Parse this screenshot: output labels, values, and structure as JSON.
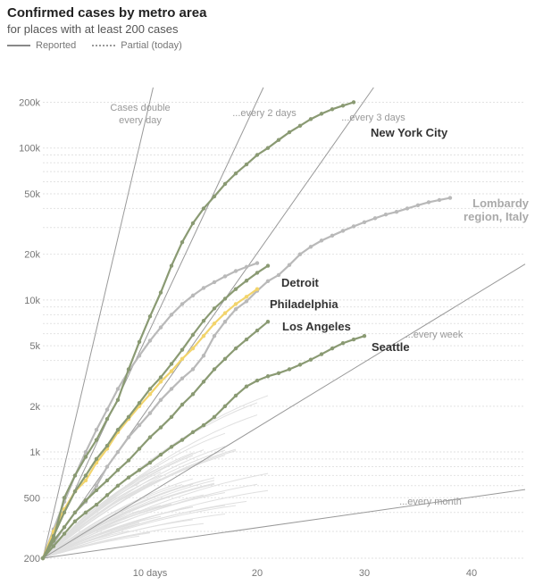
{
  "header": {
    "title": "Confirmed cases by metro area",
    "subtitle": "for places with at least 200 cases",
    "legend_reported": "Reported",
    "legend_partial": "Partial (today)"
  },
  "colors": {
    "green": "#8a9a73",
    "gray": "#b9b9b9",
    "yellow": "#f2d46b",
    "background_lines": "#e0e0e0",
    "reference": "#999999"
  },
  "chart_data": {
    "type": "line",
    "title": "Confirmed cases by metro area",
    "subtitle": "for places with at least 200 cases",
    "xlabel": "",
    "ylabel": "",
    "xlim": [
      0,
      45
    ],
    "ylim": [
      200,
      250000
    ],
    "y_scale": "log",
    "x_ticks": [
      {
        "value": 10,
        "label": "10 days"
      },
      {
        "value": 20,
        "label": "20"
      },
      {
        "value": 30,
        "label": "30"
      },
      {
        "value": 40,
        "label": "40"
      }
    ],
    "y_ticks": [
      {
        "value": 200,
        "label": "200"
      },
      {
        "value": 500,
        "label": "500"
      },
      {
        "value": 1000,
        "label": "1k"
      },
      {
        "value": 2000,
        "label": "2k"
      },
      {
        "value": 5000,
        "label": "5k"
      },
      {
        "value": 10000,
        "label": "10k"
      },
      {
        "value": 20000,
        "label": "20k"
      },
      {
        "value": 50000,
        "label": "50k"
      },
      {
        "value": 100000,
        "label": "100k"
      },
      {
        "value": 200000,
        "label": "200k"
      }
    ],
    "reference_lines": [
      {
        "label_line1": "Cases double",
        "label_line2": "every day",
        "doubling_days": 1
      },
      {
        "label_line1": "...every 2 days",
        "label_line2": "",
        "doubling_days": 2
      },
      {
        "label_line1": "...every 3 days",
        "label_line2": "",
        "doubling_days": 3
      },
      {
        "label_line1": "...every week",
        "label_line2": "",
        "doubling_days": 7
      },
      {
        "label_line1": "...every month",
        "label_line2": "",
        "doubling_days": 30
      }
    ],
    "series": [
      {
        "name": "New York City",
        "label": "New York City",
        "color": "green",
        "x": [
          0,
          1,
          2,
          3,
          4,
          5,
          6,
          7,
          8,
          9,
          10,
          11,
          12,
          13,
          14,
          15,
          16,
          17,
          18,
          19,
          20,
          21,
          22,
          23,
          24,
          25,
          26,
          27,
          28,
          29
        ],
        "y": [
          200,
          270,
          500,
          700,
          930,
          1200,
          1650,
          2200,
          3500,
          5300,
          7800,
          11200,
          16800,
          24000,
          32000,
          40000,
          48000,
          58000,
          68000,
          78000,
          90000,
          100000,
          113000,
          127000,
          140000,
          155000,
          168000,
          180000,
          190000,
          200000
        ]
      },
      {
        "name": "Lombardy region, Italy",
        "label": "Lombardy",
        "label2": "region, Italy",
        "color": "gray",
        "x": [
          0,
          1,
          2,
          3,
          4,
          5,
          6,
          7,
          8,
          9,
          10,
          11,
          12,
          13,
          14,
          15,
          16,
          17,
          18,
          19,
          20,
          21,
          22,
          23,
          24,
          25,
          26,
          27,
          28,
          29,
          30,
          31,
          32,
          33,
          34,
          35,
          36,
          37,
          38
        ],
        "y": [
          200,
          250,
          320,
          400,
          470,
          600,
          800,
          1000,
          1250,
          1500,
          1800,
          2200,
          2600,
          3050,
          3500,
          4300,
          5800,
          7200,
          8700,
          9800,
          11500,
          13300,
          14600,
          17000,
          20000,
          22400,
          24600,
          26500,
          28500,
          30500,
          32500,
          34500,
          36500,
          38000,
          40000,
          42000,
          44000,
          45500,
          47000
        ]
      },
      {
        "name": "Detroit",
        "label": "Detroit",
        "color": "green",
        "x": [
          0,
          1,
          2,
          3,
          4,
          5,
          6,
          7,
          8,
          9,
          10,
          11,
          12,
          13,
          14,
          15,
          16,
          17,
          18,
          19,
          20,
          21
        ],
        "y": [
          200,
          280,
          400,
          550,
          700,
          900,
          1100,
          1400,
          1700,
          2100,
          2600,
          3100,
          3800,
          4700,
          5900,
          7300,
          8800,
          10200,
          11800,
          13400,
          15100,
          16800
        ]
      },
      {
        "name": "Philadelphia",
        "label": "Philadelphia",
        "color": "yellow",
        "x": [
          0,
          1,
          2,
          3,
          4,
          5,
          6,
          7,
          8,
          9,
          10,
          11,
          12,
          13,
          14,
          15,
          16,
          17,
          18,
          19,
          20
        ],
        "y": [
          200,
          300,
          420,
          550,
          650,
          850,
          1050,
          1350,
          1650,
          2000,
          2400,
          2900,
          3400,
          4100,
          4800,
          5800,
          7000,
          8200,
          9400,
          10500,
          11800
        ]
      },
      {
        "name": "Los Angeles",
        "label": "Los Angeles",
        "color": "green",
        "x": [
          0,
          1,
          2,
          3,
          4,
          5,
          6,
          7,
          8,
          9,
          10,
          11,
          12,
          13,
          14,
          15,
          16,
          17,
          18,
          19,
          20,
          21
        ],
        "y": [
          200,
          260,
          320,
          400,
          480,
          560,
          650,
          760,
          880,
          1050,
          1250,
          1450,
          1700,
          2050,
          2400,
          2900,
          3500,
          4100,
          4800,
          5500,
          6300,
          7200
        ]
      },
      {
        "name": "Seattle",
        "label": "Seattle",
        "color": "green",
        "x": [
          0,
          1,
          2,
          3,
          4,
          5,
          6,
          7,
          8,
          9,
          10,
          11,
          12,
          13,
          14,
          15,
          16,
          17,
          18,
          19,
          20,
          21,
          22,
          23,
          24,
          25,
          26,
          27,
          28,
          29,
          30
        ],
        "y": [
          200,
          240,
          290,
          350,
          400,
          450,
          520,
          600,
          680,
          760,
          850,
          960,
          1080,
          1200,
          1350,
          1500,
          1700,
          2000,
          2350,
          2700,
          2950,
          3150,
          3300,
          3500,
          3750,
          4050,
          4400,
          4800,
          5200,
          5500,
          5800
        ]
      },
      {
        "name": "Sample metro 1",
        "label": "",
        "color": "gray",
        "x": [
          0,
          1,
          2,
          3,
          4,
          5,
          6,
          7,
          8,
          9,
          10,
          11,
          12,
          13,
          14,
          15,
          16,
          17,
          18,
          19,
          20
        ],
        "y": [
          200,
          310,
          470,
          700,
          1000,
          1400,
          1900,
          2600,
          3400,
          4300,
          5400,
          6600,
          8000,
          9400,
          10700,
          12000,
          13100,
          14300,
          15500,
          16500,
          17500
        ]
      }
    ]
  }
}
